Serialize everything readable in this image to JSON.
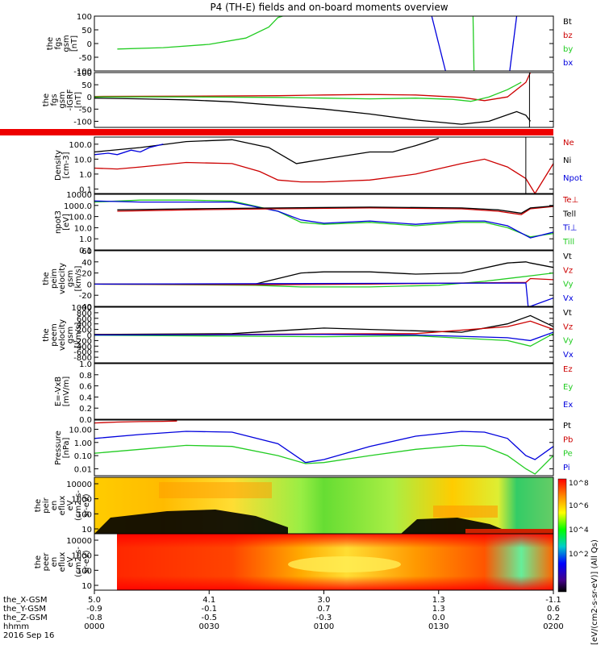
{
  "title": "P4 (TH-E) fields and on-board moments overview",
  "footer": {
    "row_labels": [
      "the_X-GSM",
      "the_Y-GSM",
      "the_Z-GSM",
      "hhmm",
      "2016 Sep 16"
    ],
    "columns": [
      [
        "5.0",
        "-0.9",
        "-0.8",
        "0000"
      ],
      [
        "4.1",
        "-0.1",
        "-0.5",
        "0030"
      ],
      [
        "3.0",
        "0.7",
        "-0.3",
        "0100"
      ],
      [
        "1.3",
        "1.3",
        "0.0",
        "0130"
      ],
      [
        "-1.1",
        "0.6",
        "0.2",
        "0200"
      ]
    ]
  },
  "colors": {
    "black": "#000000",
    "red": "#cc0000",
    "green": "#22cc22",
    "blue": "#0000dd",
    "bar_red": "#ee0000"
  },
  "colorbar": {
    "ticks": [
      "10^8",
      "10^6",
      "10^4",
      "10^2"
    ],
    "label": "[eV/(cm2-s-sr-eV)] (All Qs)",
    "stops": [
      "#ff0000",
      "#ff8800",
      "#ffff00",
      "#00ff00",
      "#00cccc",
      "#0000ff",
      "#440088",
      "#000000"
    ]
  },
  "chart_data": [
    {
      "type": "line",
      "id": "fgs",
      "ylabel": [
        "the",
        "fgs",
        "gsm",
        "[nT]"
      ],
      "ylim": [
        -100,
        100
      ],
      "ticks": [
        "100",
        "50",
        "0",
        "-50",
        "-100"
      ],
      "legend": [
        {
          "text": "Bt",
          "color": "#000000"
        },
        {
          "text": "bz",
          "color": "#cc0000"
        },
        {
          "text": "by",
          "color": "#22cc22"
        },
        {
          "text": "bx",
          "color": "#0000dd"
        }
      ],
      "series": [
        {
          "color": "#22cc22",
          "x": [
            0.05,
            0.15,
            0.25,
            0.33,
            0.38,
            0.4,
            0.41
          ],
          "y": [
            -20,
            -15,
            -3,
            20,
            60,
            95,
            100
          ]
        },
        {
          "color": "#22cc22",
          "x": [
            0.825,
            0.826,
            0.827
          ],
          "y": [
            100,
            0,
            -100
          ]
        },
        {
          "color": "#0000dd",
          "x": [
            0.735,
            0.765
          ],
          "y": [
            100,
            -100
          ]
        },
        {
          "color": "#0000dd",
          "x": [
            0.905,
            0.92
          ],
          "y": [
            -100,
            100
          ]
        }
      ]
    },
    {
      "type": "line",
      "id": "fgs-detrend",
      "ylabel": [
        "the",
        "fgs",
        "gsm",
        "-IGRF",
        "[nT]"
      ],
      "ylim": [
        -125,
        100
      ],
      "ticks": [
        "100",
        "50",
        "0",
        "-50",
        "-100"
      ],
      "series": [
        {
          "color": "#000000",
          "x": [
            0,
            0.1,
            0.2,
            0.3,
            0.4,
            0.5,
            0.6,
            0.7,
            0.8,
            0.86,
            0.92,
            0.94,
            0.95
          ],
          "y": [
            -5,
            -8,
            -12,
            -20,
            -35,
            -50,
            -70,
            -95,
            -112,
            -100,
            -60,
            -75,
            -100
          ]
        },
        {
          "color": "#cc0000",
          "x": [
            0,
            0.2,
            0.4,
            0.5,
            0.6,
            0.7,
            0.8,
            0.85,
            0.9,
            0.94,
            0.95
          ],
          "y": [
            2,
            3,
            5,
            8,
            10,
            8,
            -2,
            -15,
            0,
            60,
            100
          ]
        },
        {
          "color": "#22cc22",
          "x": [
            0,
            0.2,
            0.4,
            0.5,
            0.6,
            0.7,
            0.78,
            0.82,
            0.86,
            0.9,
            0.93
          ],
          "y": [
            0,
            0,
            -2,
            -5,
            -8,
            -5,
            -10,
            -18,
            0,
            30,
            60
          ]
        }
      ]
    },
    {
      "type": "line",
      "id": "density",
      "ylabel": [
        "Density",
        "[cm-3]"
      ],
      "log": true,
      "ylim": [
        0.05,
        300
      ],
      "ticks": [
        "100.0",
        "10.0",
        "1.0",
        "0.1"
      ],
      "tick_values": [
        100,
        10,
        1,
        0.1
      ],
      "legend": [
        {
          "text": "Ne",
          "color": "#cc0000"
        },
        {
          "text": "Ni",
          "color": "#000000"
        },
        {
          "text": "Npot",
          "color": "#0000dd"
        }
      ],
      "series": [
        {
          "color": "#000000",
          "x": [
            0,
            0.1,
            0.2,
            0.3,
            0.38,
            0.44,
            0.5,
            0.6,
            0.65,
            0.7,
            0.75
          ],
          "y": [
            30,
            60,
            150,
            200,
            60,
            5,
            10,
            30,
            30,
            80,
            250
          ]
        },
        {
          "color": "#cc0000",
          "x": [
            0,
            0.05,
            0.1,
            0.2,
            0.3,
            0.36,
            0.4,
            0.45,
            0.5,
            0.6,
            0.7,
            0.8,
            0.85,
            0.9,
            0.94,
            0.96,
            1.0
          ],
          "y": [
            2.5,
            2.2,
            3,
            6,
            5,
            1.5,
            0.4,
            0.3,
            0.3,
            0.4,
            1,
            5,
            10,
            3,
            0.5,
            0.05,
            5
          ]
        },
        {
          "color": "#0000dd",
          "x": [
            0,
            0.03,
            0.05,
            0.08,
            0.1,
            0.12,
            0.15
          ],
          "y": [
            20,
            25,
            20,
            40,
            30,
            60,
            100
          ]
        }
      ]
    },
    {
      "type": "line",
      "id": "temperature",
      "ylabel": [
        "npot3",
        "[eV]"
      ],
      "log": true,
      "ylim": [
        0.1,
        10000
      ],
      "ticks": [
        "10000",
        "1000.0",
        "100.0",
        "10.0",
        "1.0",
        "0.1"
      ],
      "tick_values": [
        10000,
        1000,
        100,
        10,
        1,
        0.1
      ],
      "legend": [
        {
          "text": "Te⊥",
          "color": "#cc0000"
        },
        {
          "text": "Tell",
          "color": "#000000"
        },
        {
          "text": "Ti⊥",
          "color": "#0000dd"
        },
        {
          "text": "Till",
          "color": "#22cc22"
        }
      ],
      "series": [
        {
          "color": "#22cc22",
          "x": [
            0,
            0.1,
            0.2,
            0.3,
            0.4,
            0.45,
            0.5,
            0.6,
            0.7,
            0.8,
            0.85,
            0.9,
            0.95,
            1.0
          ],
          "y": [
            2000,
            3000,
            3000,
            2500,
            300,
            30,
            20,
            30,
            15,
            30,
            30,
            10,
            1.5,
            3
          ]
        },
        {
          "color": "#0000dd",
          "x": [
            0,
            0.1,
            0.2,
            0.3,
            0.4,
            0.45,
            0.5,
            0.6,
            0.7,
            0.8,
            0.85,
            0.9,
            0.95,
            1.0
          ],
          "y": [
            2500,
            2000,
            2000,
            2000,
            300,
            50,
            25,
            40,
            20,
            40,
            40,
            15,
            1.2,
            4
          ]
        },
        {
          "color": "#cc0000",
          "x": [
            0.05,
            0.2,
            0.4,
            0.6,
            0.8,
            0.88,
            0.93,
            0.95,
            1.0
          ],
          "y": [
            300,
            400,
            500,
            600,
            500,
            300,
            150,
            500,
            800
          ]
        },
        {
          "color": "#000000",
          "x": [
            0.05,
            0.2,
            0.4,
            0.6,
            0.8,
            0.88,
            0.93,
            0.95,
            1.0
          ],
          "y": [
            400,
            500,
            600,
            700,
            600,
            400,
            200,
            600,
            900
          ]
        }
      ]
    },
    {
      "type": "line",
      "id": "peim-velocity",
      "ylabel": [
        "the",
        "peim",
        "velocity",
        "gsm",
        "[km/s]"
      ],
      "ylim": [
        -40,
        60
      ],
      "ticks": [
        "60",
        "40",
        "20",
        "0",
        "-20",
        "-40"
      ],
      "legend": [
        {
          "text": "Vt",
          "color": "#000000"
        },
        {
          "text": "Vz",
          "color": "#cc0000"
        },
        {
          "text": "Vy",
          "color": "#22cc22"
        },
        {
          "text": "Vx",
          "color": "#0000dd"
        }
      ],
      "series": [
        {
          "color": "#000000",
          "x": [
            0,
            0.35,
            0.4,
            0.45,
            0.5,
            0.6,
            0.7,
            0.8,
            0.9,
            0.94,
            0.95,
            1.0
          ],
          "y": [
            0,
            0,
            10,
            20,
            22,
            22,
            18,
            20,
            38,
            40,
            38,
            30
          ]
        },
        {
          "color": "#22cc22",
          "x": [
            0,
            0.35,
            0.45,
            0.6,
            0.75,
            0.85,
            0.95,
            1.0
          ],
          "y": [
            0,
            -2,
            -5,
            -5,
            -2,
            5,
            15,
            20
          ]
        },
        {
          "color": "#cc0000",
          "x": [
            0,
            0.4,
            0.6,
            0.8,
            0.94,
            0.95,
            1.0
          ],
          "y": [
            0,
            -1,
            0,
            2,
            3,
            10,
            8
          ]
        },
        {
          "color": "#0000dd",
          "x": [
            0,
            0.94,
            0.945,
            0.95,
            1.0
          ],
          "y": [
            0,
            2,
            -40,
            -40,
            -25
          ]
        }
      ]
    },
    {
      "type": "line",
      "id": "peem-velocity",
      "ylabel": [
        "the",
        "peem",
        "velocity",
        "gsm",
        "[km/s]"
      ],
      "ylim": [
        -1000,
        1000
      ],
      "ticks": [
        "1000",
        "800",
        "600",
        "400",
        "200",
        "0",
        "-200",
        "-400",
        "-600",
        "-800"
      ],
      "legend": [
        {
          "text": "Vt",
          "color": "#000000"
        },
        {
          "text": "Vz",
          "color": "#cc0000"
        },
        {
          "text": "Vy",
          "color": "#22cc22"
        },
        {
          "text": "Vx",
          "color": "#0000dd"
        }
      ],
      "series": [
        {
          "color": "#000000",
          "x": [
            0,
            0.3,
            0.4,
            0.5,
            0.6,
            0.7,
            0.8,
            0.9,
            0.95,
            1.0
          ],
          "y": [
            20,
            50,
            150,
            250,
            200,
            150,
            100,
            400,
            700,
            300
          ]
        },
        {
          "color": "#cc0000",
          "x": [
            0,
            0.3,
            0.5,
            0.7,
            0.9,
            0.95,
            1.0
          ],
          "y": [
            0,
            20,
            40,
            50,
            300,
            500,
            200
          ]
        },
        {
          "color": "#22cc22",
          "x": [
            0,
            0.3,
            0.5,
            0.7,
            0.9,
            0.95,
            1.0
          ],
          "y": [
            -10,
            -40,
            -60,
            -30,
            -200,
            -400,
            50
          ]
        },
        {
          "color": "#0000dd",
          "x": [
            0,
            0.3,
            0.5,
            0.7,
            0.9,
            0.95,
            1.0
          ],
          "y": [
            0,
            10,
            20,
            0,
            -100,
            -200,
            100
          ]
        }
      ]
    },
    {
      "type": "line",
      "id": "efield",
      "ylabel": [
        "E=-VxB",
        "[mV/m]"
      ],
      "ylim": [
        0,
        1
      ],
      "ticks": [
        "1.0",
        "0.8",
        "0.6",
        "0.4",
        "0.2",
        "0.0"
      ],
      "legend": [
        {
          "text": "Ez",
          "color": "#cc0000"
        },
        {
          "text": "Ey",
          "color": "#22cc22"
        },
        {
          "text": "Ex",
          "color": "#0000dd"
        }
      ],
      "series": []
    },
    {
      "type": "line",
      "id": "pressure",
      "ylabel": [
        "Pressure",
        "[nPa]"
      ],
      "log": true,
      "ylim": [
        0.003,
        50
      ],
      "ticks": [
        "10.00",
        "1.00",
        "0.10",
        "0.01"
      ],
      "tick_values": [
        10,
        1,
        0.1,
        0.01
      ],
      "legend": [
        {
          "text": "Pt",
          "color": "#000000"
        },
        {
          "text": "Pb",
          "color": "#cc0000"
        },
        {
          "text": "Pe",
          "color": "#22cc22"
        },
        {
          "text": "Pi",
          "color": "#0000dd"
        }
      ],
      "series": [
        {
          "color": "#0000dd",
          "x": [
            0,
            0.1,
            0.2,
            0.3,
            0.4,
            0.46,
            0.5,
            0.6,
            0.7,
            0.8,
            0.85,
            0.9,
            0.94,
            0.96,
            1.0
          ],
          "y": [
            2,
            4,
            7,
            6,
            0.8,
            0.03,
            0.05,
            0.5,
            3,
            7,
            6,
            2,
            0.1,
            0.05,
            0.5
          ]
        },
        {
          "color": "#22cc22",
          "x": [
            0,
            0.1,
            0.2,
            0.3,
            0.4,
            0.46,
            0.5,
            0.6,
            0.7,
            0.8,
            0.85,
            0.9,
            0.94,
            0.96,
            1.0
          ],
          "y": [
            0.15,
            0.3,
            0.6,
            0.5,
            0.1,
            0.025,
            0.03,
            0.1,
            0.3,
            0.6,
            0.5,
            0.1,
            0.01,
            0.004,
            0.1
          ]
        },
        {
          "color": "#cc0000",
          "x": [
            0.0,
            0.05,
            0.1,
            0.15,
            0.18
          ],
          "y": [
            30,
            35,
            38,
            40,
            42
          ]
        }
      ]
    },
    {
      "type": "heatmap",
      "id": "peir-flux",
      "ylabel": [
        "the",
        "peir",
        "en",
        "eflux",
        "eV",
        "(cm2-s-",
        "sr-eV)"
      ],
      "ticks": [
        "10000",
        "1000",
        "100",
        "10"
      ]
    },
    {
      "type": "heatmap",
      "id": "peer-flux",
      "ylabel": [
        "the",
        "peer",
        "en",
        "eflux",
        "eV",
        "(cm2-s-",
        "sr-eV)"
      ],
      "ticks": [
        "10000",
        "1000",
        "100",
        "10"
      ]
    }
  ]
}
